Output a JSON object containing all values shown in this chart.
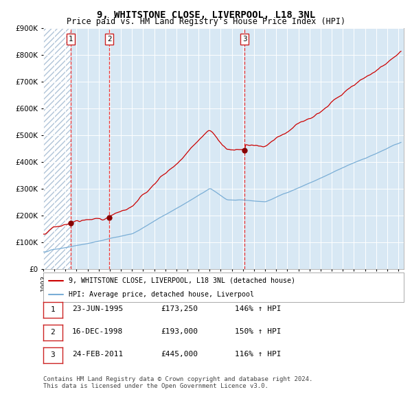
{
  "title": "9, WHITSTONE CLOSE, LIVERPOOL, L18 3NL",
  "subtitle": "Price paid vs. HM Land Registry's House Price Index (HPI)",
  "table_rows": [
    [
      "1",
      "23-JUN-1995",
      "£173,250",
      "146% ↑ HPI"
    ],
    [
      "2",
      "16-DEC-1998",
      "£193,000",
      "150% ↑ HPI"
    ],
    [
      "3",
      "24-FEB-2011",
      "£445,000",
      "116% ↑ HPI"
    ]
  ],
  "legend_line1": "9, WHITSTONE CLOSE, LIVERPOOL, L18 3NL (detached house)",
  "legend_line2": "HPI: Average price, detached house, Liverpool",
  "footer1": "Contains HM Land Registry data © Crown copyright and database right 2024.",
  "footer2": "This data is licensed under the Open Government Licence v3.0.",
  "ylim": [
    0,
    900000
  ],
  "yticks": [
    0,
    100000,
    200000,
    300000,
    400000,
    500000,
    600000,
    700000,
    800000,
    900000
  ],
  "ytick_labels": [
    "£0",
    "£100K",
    "£200K",
    "£300K",
    "£400K",
    "£500K",
    "£600K",
    "£700K",
    "£800K",
    "£900K"
  ],
  "property_color": "#cc0000",
  "hpi_color": "#7aaed6",
  "sale_marker_color": "#880000",
  "vline_color": "#ee3333",
  "bg_color": "#d8e8f4",
  "grid_color": "#ffffff",
  "sale_dates": [
    "1995-06-23",
    "1998-12-16",
    "2011-02-24"
  ],
  "sale_prices": [
    173250,
    193000,
    445000
  ],
  "sale_labels": [
    "1",
    "2",
    "3"
  ]
}
